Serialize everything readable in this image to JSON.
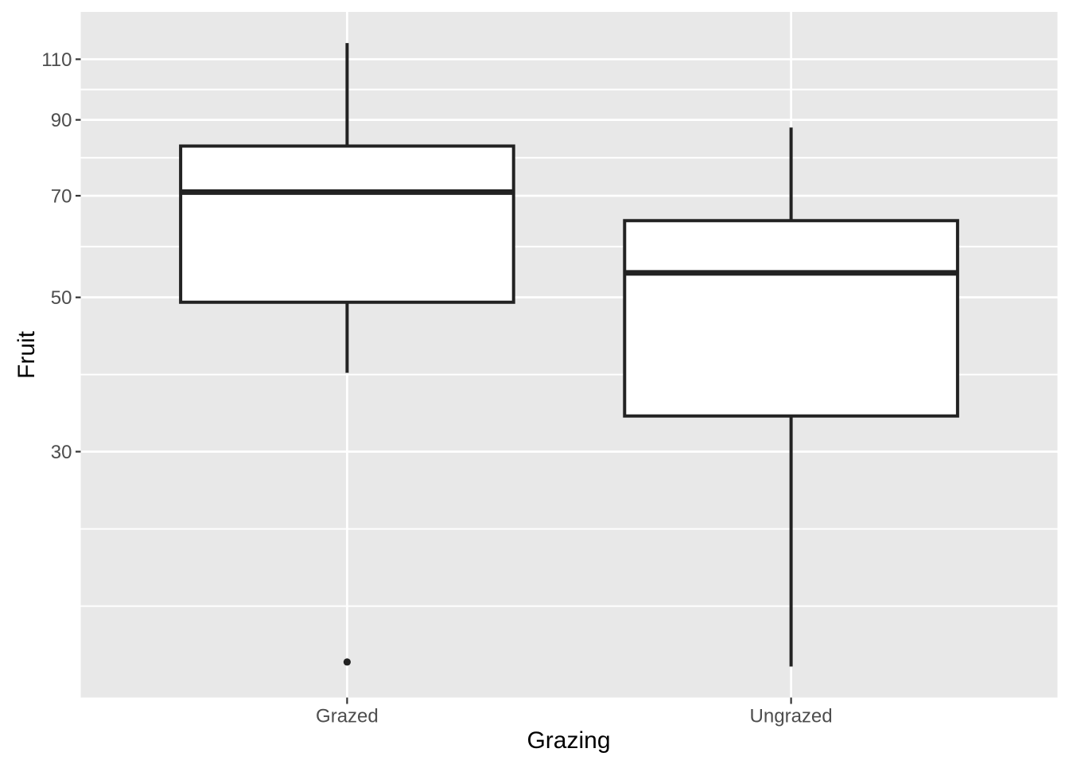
{
  "chart_data": {
    "type": "boxplot",
    "title": "",
    "xlabel": "Grazing",
    "ylabel": "Fruit",
    "categories": [
      "Grazed",
      "Ungrazed"
    ],
    "series": [
      {
        "category": "Grazed",
        "whisker_low": 38.94,
        "q1": 49.2,
        "median": 70.86,
        "q3": 82.52,
        "whisker_high": 116.05,
        "outliers": [
          14.95
        ]
      },
      {
        "category": "Ungrazed",
        "whisker_low": 14.73,
        "q1": 33.76,
        "median": 54.23,
        "q3": 64.46,
        "whisker_high": 87.73,
        "outliers": []
      }
    ],
    "y_axis": {
      "scale": "log",
      "limits": [
        13.29,
        128.65
      ],
      "major_breaks": [
        110,
        90,
        70,
        50,
        30
      ],
      "tick_labels": [
        "110",
        "90",
        "70",
        "50",
        "30"
      ],
      "minor_breaks": [
        99.5,
        79.37,
        59.16,
        38.73,
        23.23,
        17.99
      ]
    },
    "x_axis": {
      "tick_labels": [
        "Grazed",
        "Ungrazed"
      ]
    },
    "grid": {
      "major": "on",
      "minor": "on"
    },
    "legend": "none",
    "colors": {
      "figure_background": "#FFFFFF",
      "panel_background": "#E8E8E8",
      "gridline": "#FFFFFF",
      "box_fill": "#FFFFFF",
      "box_stroke": "#222222",
      "median_stroke": "#222222",
      "outlier": "#222222",
      "tick_mark": "#333333",
      "axis_text": "#4D4D4D",
      "axis_title": "#000000"
    }
  }
}
